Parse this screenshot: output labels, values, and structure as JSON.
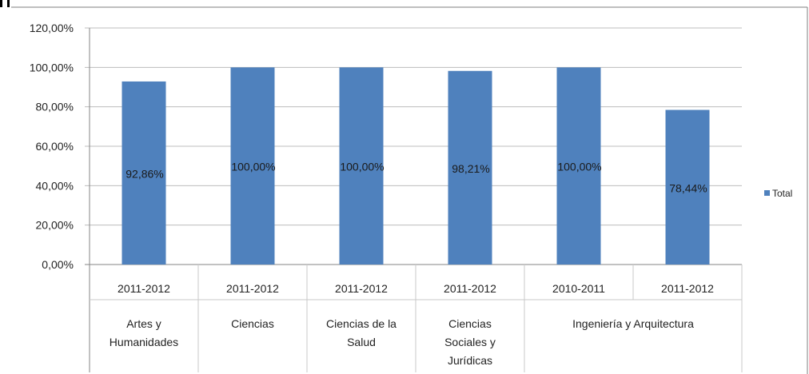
{
  "chart_data": {
    "type": "bar",
    "series": [
      {
        "name": "Total",
        "color": "#4f81bd",
        "values": [
          92.86,
          100.0,
          100.0,
          98.21,
          100.0,
          78.44
        ]
      }
    ],
    "data_labels": [
      "92,86%",
      "100,00%",
      "100,00%",
      "98,21%",
      "100,00%",
      "78,44%"
    ],
    "categories": [
      {
        "year": "2011-2012",
        "group": "Artes y Humanidades"
      },
      {
        "year": "2011-2012",
        "group": "Ciencias"
      },
      {
        "year": "2011-2012",
        "group": "Ciencias de la Salud"
      },
      {
        "year": "2011-2012",
        "group": "Ciencias Sociales y Jurídicas"
      },
      {
        "year": "2010-2011",
        "group": "Ingeniería y Arquitectura"
      },
      {
        "year": "2011-2012",
        "group": "Ingeniería y Arquitectura"
      }
    ],
    "groups": [
      {
        "lines": [
          "Artes y",
          "Humanidades"
        ],
        "span": [
          0,
          0
        ]
      },
      {
        "lines": [
          "Ciencias"
        ],
        "span": [
          1,
          1
        ]
      },
      {
        "lines": [
          "Ciencias de la",
          "Salud"
        ],
        "span": [
          2,
          2
        ]
      },
      {
        "lines": [
          "Ciencias",
          "Sociales y",
          "Jurídicas"
        ],
        "span": [
          3,
          3
        ]
      },
      {
        "lines": [
          "Ingeniería y Arquitectura"
        ],
        "span": [
          4,
          5
        ]
      }
    ],
    "ylim": [
      0,
      120
    ],
    "yticks": [
      0,
      20,
      40,
      60,
      80,
      100,
      120
    ],
    "ytick_labels": [
      "0,00%",
      "20,00%",
      "40,00%",
      "60,00%",
      "80,00%",
      "100,00%",
      "120,00%"
    ],
    "grid": true,
    "legend": {
      "position": "right",
      "label": "Total"
    }
  }
}
